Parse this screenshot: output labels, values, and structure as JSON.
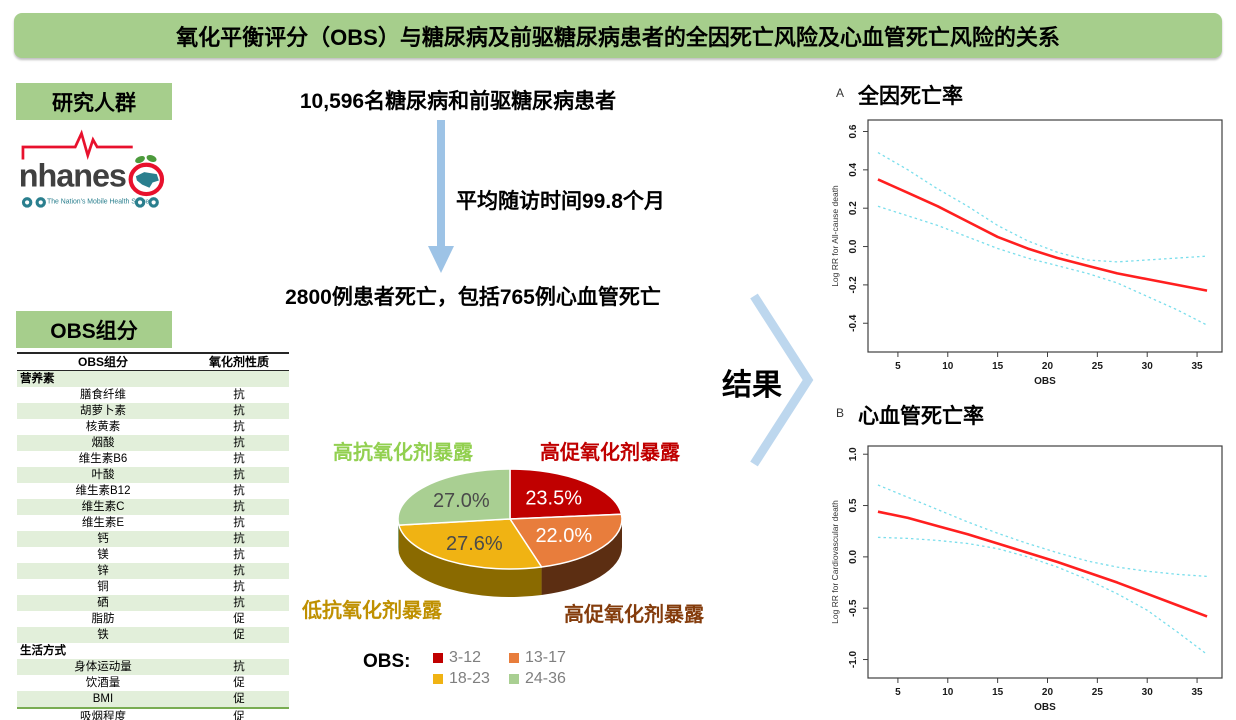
{
  "banner": {
    "title": "氧化平衡评分（OBS）与糖尿病及前驱糖尿病患者的全因死亡风险及心血管死亡风险的关系"
  },
  "colors": {
    "banner_bg": "#A6CE8C",
    "label_box_bg": "#A6CE8C",
    "table_stripe": "#E2EFDA",
    "arrow_blue": "#9DC3E6",
    "chevron_blue": "#BDD7EE",
    "estimate_red": "#FF1F1F",
    "ci_cyan": "#7ADEEC",
    "logo_red": "#E8112D",
    "logo_teal": "#2A7F8E"
  },
  "left": {
    "population_label": "研究人群",
    "logo": {
      "name": "nhanes",
      "tagline": "The Nation's Mobile Health Survey"
    },
    "components_label": "OBS组分",
    "table": {
      "headers": [
        "OBS组分",
        "氧化剂性质"
      ],
      "rows": [
        {
          "label": "营养素",
          "value": "",
          "section": true
        },
        {
          "label": "膳食纤维",
          "value": "抗"
        },
        {
          "label": "胡萝卜素",
          "value": "抗"
        },
        {
          "label": "核黄素",
          "value": "抗"
        },
        {
          "label": "烟酸",
          "value": "抗"
        },
        {
          "label": "维生素B6",
          "value": "抗"
        },
        {
          "label": "叶酸",
          "value": "抗"
        },
        {
          "label": "维生素B12",
          "value": "抗"
        },
        {
          "label": "维生素C",
          "value": "抗"
        },
        {
          "label": "维生素E",
          "value": "抗"
        },
        {
          "label": "钙",
          "value": "抗"
        },
        {
          "label": "镁",
          "value": "抗"
        },
        {
          "label": "锌",
          "value": "抗"
        },
        {
          "label": "铜",
          "value": "抗"
        },
        {
          "label": "硒",
          "value": "抗"
        },
        {
          "label": "脂肪",
          "value": "促"
        },
        {
          "label": "铁",
          "value": "促"
        },
        {
          "label": "生活方式",
          "value": "",
          "section": true
        },
        {
          "label": "身体运动量",
          "value": "抗"
        },
        {
          "label": "饮酒量",
          "value": "促"
        },
        {
          "label": "BMI",
          "value": "促"
        },
        {
          "label": "吸烟程度",
          "value": "促"
        }
      ]
    }
  },
  "flow": {
    "step1": "10,596名糖尿病和前驱糖尿病患者",
    "arrow_label": "平均随访时间99.8个月",
    "step2": "2800例患者死亡，包括765例心血管死亡",
    "result_label": "结果"
  },
  "chart_data": [
    {
      "type": "pie",
      "unit": "%",
      "legend_title": "OBS:",
      "slices": [
        {
          "obs_range": "3-12",
          "value": 23.5,
          "color": "#C00000",
          "dark": "#5B1A06",
          "label_color": "#FFFFFF"
        },
        {
          "obs_range": "13-17",
          "value": 22.0,
          "color": "#E87D3C",
          "dark": "#5C2E12",
          "label_color": "#FFFFFF"
        },
        {
          "obs_range": "18-23",
          "value": 27.6,
          "color": "#F0B313",
          "dark": "#8A6A00",
          "label_color": "#4A4A4A"
        },
        {
          "obs_range": "24-36",
          "value": 27.0,
          "color": "#A9CF92",
          "dark": "#7C9B6B",
          "label_color": "#4A4A4A"
        }
      ],
      "corner_labels": [
        {
          "text": "高抗氧化剂暴露",
          "color": "#92D050"
        },
        {
          "text": "高促氧化剂暴露",
          "color": "#C00000"
        },
        {
          "text": "低抗氧化剂暴露",
          "color": "#BF9000"
        },
        {
          "text": "高促氧化剂暴露",
          "color": "#843C0C"
        }
      ]
    },
    {
      "type": "line",
      "panel": "A",
      "title": "全因死亡率",
      "xlabel": "OBS",
      "ylabel": "Log RR for All-cause death",
      "xlim": [
        2,
        37.5
      ],
      "ylim": [
        -0.55,
        0.66
      ],
      "xticks": [
        5,
        10,
        15,
        20,
        25,
        30,
        35
      ],
      "yticks": [
        0.6,
        0.4,
        0.2,
        0.0,
        -0.2,
        -0.4
      ],
      "x": [
        3,
        6,
        9,
        12,
        15,
        18,
        21,
        24,
        27,
        30,
        33,
        36
      ],
      "series": [
        {
          "name": "estimate",
          "style": "solid",
          "color": "#FF1F1F",
          "values": [
            0.35,
            0.28,
            0.21,
            0.13,
            0.05,
            -0.01,
            -0.06,
            -0.1,
            -0.14,
            -0.17,
            -0.2,
            -0.23
          ]
        },
        {
          "name": "upper-ci",
          "style": "dashed",
          "color": "#7ADEEC",
          "values": [
            0.49,
            0.4,
            0.3,
            0.21,
            0.11,
            0.03,
            -0.03,
            -0.07,
            -0.08,
            -0.07,
            -0.06,
            -0.05
          ]
        },
        {
          "name": "lower-ci",
          "style": "dashed",
          "color": "#7ADEEC",
          "values": [
            0.21,
            0.16,
            0.11,
            0.05,
            -0.01,
            -0.06,
            -0.1,
            -0.14,
            -0.19,
            -0.26,
            -0.33,
            -0.41
          ]
        }
      ]
    },
    {
      "type": "line",
      "panel": "B",
      "title": "心血管死亡率",
      "xlabel": "OBS",
      "ylabel": "Log RR for Cardiovascular death",
      "xlim": [
        2,
        37.5
      ],
      "ylim": [
        -1.18,
        1.08
      ],
      "xticks": [
        5,
        10,
        15,
        20,
        25,
        30,
        35
      ],
      "yticks": [
        1.0,
        0.5,
        0.0,
        -0.5,
        -1.0
      ],
      "x": [
        3,
        6,
        9,
        12,
        15,
        18,
        21,
        24,
        27,
        30,
        33,
        36
      ],
      "series": [
        {
          "name": "estimate",
          "style": "solid",
          "color": "#FF1F1F",
          "values": [
            0.44,
            0.38,
            0.3,
            0.22,
            0.13,
            0.04,
            -0.05,
            -0.15,
            -0.25,
            -0.36,
            -0.47,
            -0.58
          ]
        },
        {
          "name": "upper-ci",
          "style": "dashed",
          "color": "#7ADEEC",
          "values": [
            0.7,
            0.58,
            0.46,
            0.34,
            0.23,
            0.13,
            0.04,
            -0.04,
            -0.1,
            -0.14,
            -0.17,
            -0.19
          ]
        },
        {
          "name": "lower-ci",
          "style": "dashed",
          "color": "#7ADEEC",
          "values": [
            0.19,
            0.18,
            0.16,
            0.13,
            0.08,
            0.0,
            -0.1,
            -0.22,
            -0.36,
            -0.52,
            -0.73,
            -0.95
          ]
        }
      ]
    }
  ]
}
